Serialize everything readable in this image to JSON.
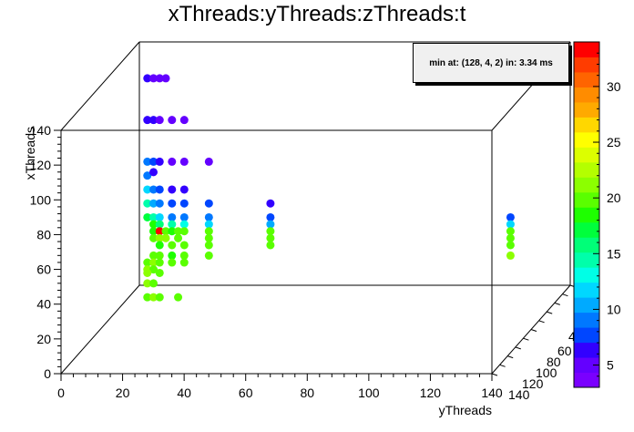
{
  "title": "xThreads:yThreads:zThreads:t",
  "info": "min at: (128, 4, 2) in: 3.34 ms",
  "chart_data": {
    "type": "scatter",
    "title": "xThreads:yThreads:zThreads:t",
    "xlabel": "yThreads",
    "ylabel": "xThreads",
    "zlabel": "",
    "xlim": [
      0,
      140
    ],
    "ylim": [
      0,
      140
    ],
    "color_scale": {
      "min": 3,
      "max": 34,
      "ticks": [
        5,
        10,
        15,
        20,
        25,
        30
      ]
    },
    "x_ticks": [
      "0",
      "20",
      "40",
      "60",
      "80",
      "100",
      "120",
      "140"
    ],
    "y_ticks": [
      "0",
      "20",
      "40",
      "60",
      "80",
      "100",
      "120",
      "140"
    ],
    "z_ticks": [
      "140",
      "120",
      "100",
      "80",
      "60",
      "40"
    ],
    "z_note": "depth axis tick labels overlap",
    "points": [
      {
        "x": 2,
        "y": 128,
        "t": 6
      },
      {
        "x": 4,
        "y": 128,
        "t": 5
      },
      {
        "x": 6,
        "y": 128,
        "t": 5
      },
      {
        "x": 8,
        "y": 128,
        "t": 5
      },
      {
        "x": 2,
        "y": 104,
        "t": 6
      },
      {
        "x": 4,
        "y": 104,
        "t": 6
      },
      {
        "x": 6,
        "y": 104,
        "t": 5
      },
      {
        "x": 10,
        "y": 104,
        "t": 5
      },
      {
        "x": 14,
        "y": 104,
        "t": 5
      },
      {
        "x": 2,
        "y": 80,
        "t": 9
      },
      {
        "x": 4,
        "y": 80,
        "t": 8
      },
      {
        "x": 6,
        "y": 80,
        "t": 6
      },
      {
        "x": 10,
        "y": 80,
        "t": 5
      },
      {
        "x": 14,
        "y": 80,
        "t": 5
      },
      {
        "x": 22,
        "y": 80,
        "t": 5
      },
      {
        "x": 2,
        "y": 72,
        "t": 9
      },
      {
        "x": 4,
        "y": 74,
        "t": 7
      },
      {
        "x": 2,
        "y": 64,
        "t": 12
      },
      {
        "x": 4,
        "y": 64,
        "t": 9
      },
      {
        "x": 6,
        "y": 64,
        "t": 8
      },
      {
        "x": 10,
        "y": 64,
        "t": 7
      },
      {
        "x": 14,
        "y": 64,
        "t": 7
      },
      {
        "x": 2,
        "y": 56,
        "t": 14
      },
      {
        "x": 4,
        "y": 56,
        "t": 11
      },
      {
        "x": 6,
        "y": 56,
        "t": 9
      },
      {
        "x": 10,
        "y": 56,
        "t": 8
      },
      {
        "x": 14,
        "y": 56,
        "t": 8
      },
      {
        "x": 22,
        "y": 56,
        "t": 8
      },
      {
        "x": 42,
        "y": 56,
        "t": 7
      },
      {
        "x": 2,
        "y": 48,
        "t": 17
      },
      {
        "x": 4,
        "y": 48,
        "t": 15
      },
      {
        "x": 6,
        "y": 48,
        "t": 12
      },
      {
        "x": 10,
        "y": 48,
        "t": 9
      },
      {
        "x": 14,
        "y": 48,
        "t": 9
      },
      {
        "x": 22,
        "y": 48,
        "t": 9
      },
      {
        "x": 42,
        "y": 48,
        "t": 8
      },
      {
        "x": 120,
        "y": 48,
        "t": 8
      },
      {
        "x": 4,
        "y": 44,
        "t": 18
      },
      {
        "x": 6,
        "y": 44,
        "t": 16
      },
      {
        "x": 10,
        "y": 44,
        "t": 14
      },
      {
        "x": 14,
        "y": 44,
        "t": 13
      },
      {
        "x": 22,
        "y": 44,
        "t": 12
      },
      {
        "x": 42,
        "y": 44,
        "t": 11
      },
      {
        "x": 120,
        "y": 44,
        "t": 12
      },
      {
        "x": 4,
        "y": 40,
        "t": 19
      },
      {
        "x": 6,
        "y": 40,
        "t": 34
      },
      {
        "x": 8,
        "y": 40,
        "t": 20
      },
      {
        "x": 10,
        "y": 40,
        "t": 19
      },
      {
        "x": 12,
        "y": 40,
        "t": 20
      },
      {
        "x": 14,
        "y": 40,
        "t": 20
      },
      {
        "x": 22,
        "y": 40,
        "t": 20
      },
      {
        "x": 42,
        "y": 40,
        "t": 20
      },
      {
        "x": 120,
        "y": 40,
        "t": 20
      },
      {
        "x": 4,
        "y": 36,
        "t": 20
      },
      {
        "x": 6,
        "y": 36,
        "t": 21
      },
      {
        "x": 8,
        "y": 36,
        "t": 21
      },
      {
        "x": 12,
        "y": 36,
        "t": 20
      },
      {
        "x": 22,
        "y": 36,
        "t": 20
      },
      {
        "x": 42,
        "y": 36,
        "t": 20
      },
      {
        "x": 120,
        "y": 36,
        "t": 20
      },
      {
        "x": 6,
        "y": 32,
        "t": 19
      },
      {
        "x": 10,
        "y": 32,
        "t": 20
      },
      {
        "x": 14,
        "y": 32,
        "t": 20
      },
      {
        "x": 22,
        "y": 32,
        "t": 20
      },
      {
        "x": 42,
        "y": 32,
        "t": 20
      },
      {
        "x": 120,
        "y": 32,
        "t": 20
      },
      {
        "x": 4,
        "y": 26,
        "t": 20
      },
      {
        "x": 6,
        "y": 26,
        "t": 20
      },
      {
        "x": 10,
        "y": 26,
        "t": 19
      },
      {
        "x": 14,
        "y": 26,
        "t": 20
      },
      {
        "x": 22,
        "y": 26,
        "t": 20
      },
      {
        "x": 120,
        "y": 26,
        "t": 21
      },
      {
        "x": 2,
        "y": 22,
        "t": 20
      },
      {
        "x": 4,
        "y": 22,
        "t": 21
      },
      {
        "x": 6,
        "y": 22,
        "t": 20
      },
      {
        "x": 10,
        "y": 22,
        "t": 20
      },
      {
        "x": 14,
        "y": 22,
        "t": 20
      },
      {
        "x": 2,
        "y": 18,
        "t": 21
      },
      {
        "x": 4,
        "y": 18,
        "t": 20
      },
      {
        "x": 2,
        "y": 16,
        "t": 21
      },
      {
        "x": 6,
        "y": 16,
        "t": 20
      },
      {
        "x": 2,
        "y": 10,
        "t": 21
      },
      {
        "x": 4,
        "y": 10,
        "t": 20
      },
      {
        "x": 2,
        "y": 2,
        "t": 20
      },
      {
        "x": 4,
        "y": 2,
        "t": 21
      },
      {
        "x": 6,
        "y": 2,
        "t": 20
      },
      {
        "x": 12,
        "y": 2,
        "t": 20
      }
    ]
  }
}
